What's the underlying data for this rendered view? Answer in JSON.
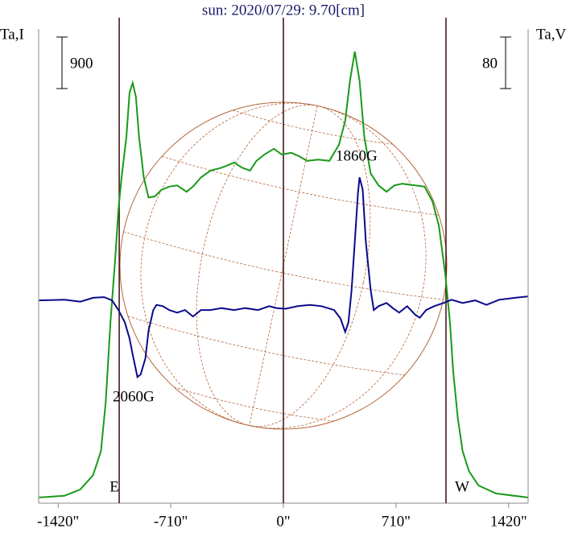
{
  "chart_data": {
    "type": "line",
    "title": "sun: 2020/07/29: 9.70[cm]",
    "y_label": "Ta,I",
    "y2_label": "Ta,V",
    "xlim": [
      -1543,
      1543
    ],
    "xticks": [
      {
        "value": -1420,
        "label": "-1420\""
      },
      {
        "value": -710,
        "label": "-710\""
      },
      {
        "value": 0,
        "label": "0\""
      },
      {
        "value": 710,
        "label": "710\""
      },
      {
        "value": 1420,
        "label": "1420\""
      }
    ],
    "ylim": [
      0,
      8480
    ],
    "y2lim": [
      -316,
      438
    ],
    "vlines": [
      -1035,
      0,
      1025
    ],
    "vline_labels": [
      "E",
      null,
      "W"
    ],
    "scale_bars": [
      {
        "value": 900,
        "axis": "y"
      },
      {
        "value": 80,
        "axis": "y2"
      }
    ],
    "annotations": [
      "1860G",
      "2060G"
    ],
    "series": [
      {
        "name": "Ta,I",
        "color": "#1a9a1a",
        "x": [
          -1540,
          -1380,
          -1280,
          -1200,
          -1150,
          -1120,
          -1090,
          -1060,
          -1040,
          -1020,
          -990,
          -970,
          -950,
          -930,
          -910,
          -880,
          -850,
          -810,
          -770,
          -720,
          -670,
          -610,
          -570,
          -520,
          -460,
          -390,
          -310,
          -260,
          -210,
          -170,
          -120,
          -60,
          -10,
          50,
          100,
          150,
          220,
          290,
          350,
          390,
          420,
          450,
          480,
          510,
          550,
          600,
          650,
          700,
          750,
          830,
          890,
          940,
          980,
          1020,
          1050,
          1070,
          1100,
          1130,
          1170,
          1230,
          1340,
          1540
        ],
        "values": [
          100,
          130,
          240,
          490,
          910,
          1760,
          3160,
          4290,
          5130,
          5690,
          6400,
          7170,
          7340,
          7100,
          6400,
          5690,
          5340,
          5360,
          5470,
          5530,
          5550,
          5440,
          5530,
          5690,
          5810,
          5860,
          5950,
          5860,
          5810,
          5980,
          6090,
          6190,
          6090,
          6120,
          6060,
          5980,
          6000,
          5980,
          6260,
          6680,
          7380,
          7890,
          7380,
          6400,
          5760,
          5550,
          5440,
          5550,
          5580,
          5550,
          5530,
          5270,
          4850,
          4010,
          3160,
          2320,
          1480,
          910,
          560,
          310,
          170,
          100
        ]
      },
      {
        "name": "Ta,V",
        "color": "#0a0a8c",
        "axis": "y2",
        "x": [
          -1540,
          -1380,
          -1280,
          -1200,
          -1130,
          -1080,
          -1040,
          -1000,
          -970,
          -950,
          -920,
          -900,
          -870,
          -850,
          -820,
          -800,
          -760,
          -720,
          -670,
          -620,
          -570,
          -520,
          -460,
          -390,
          -310,
          -240,
          -160,
          -90,
          -40,
          15,
          90,
          170,
          240,
          320,
          360,
          390,
          410,
          430,
          450,
          470,
          480,
          500,
          520,
          550,
          570,
          600,
          650,
          690,
          730,
          780,
          830,
          860,
          900,
          950,
          1010,
          1060,
          1130,
          1210,
          1280,
          1360,
          1460,
          1540
        ],
        "values": [
          -1,
          0,
          -3,
          3,
          4,
          -1,
          -16,
          -35,
          -60,
          -85,
          -120,
          -116,
          -91,
          -48,
          -16,
          -8,
          -10,
          -16,
          -20,
          -16,
          -26,
          -16,
          -16,
          -13,
          -16,
          -13,
          -16,
          -10,
          -13,
          -14,
          -10,
          -8,
          -10,
          -16,
          -29,
          -50,
          -35,
          15,
          90,
          165,
          190,
          171,
          90,
          15,
          -16,
          -10,
          -5,
          -13,
          -20,
          -10,
          -23,
          -28,
          -16,
          -10,
          -5,
          0,
          -5,
          -1,
          -8,
          0,
          3,
          5
        ]
      }
    ]
  }
}
